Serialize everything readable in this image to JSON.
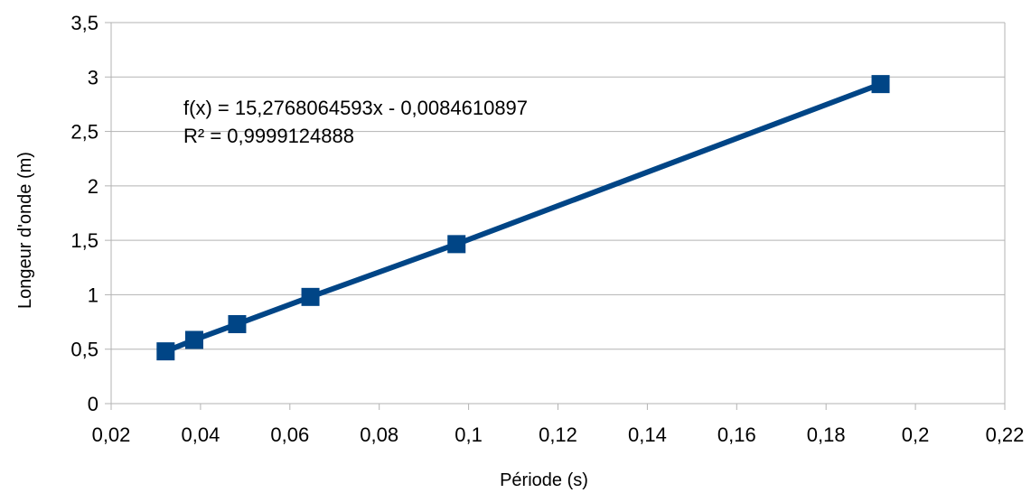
{
  "chart_data": {
    "type": "line",
    "xlabel": "Période (s)",
    "ylabel": "Longeur d'onde (m)",
    "xlim": [
      0.02,
      0.22
    ],
    "ylim": [
      0,
      3.5
    ],
    "x_ticks": [
      "0,02",
      "0,04",
      "0,06",
      "0,08",
      "0,1",
      "0,12",
      "0,14",
      "0,16",
      "0,18",
      "0,2",
      "0,22"
    ],
    "y_ticks": [
      "0",
      "0,5",
      "1",
      "1,5",
      "2",
      "2,5",
      "3",
      "3,5"
    ],
    "grid": "horizontal",
    "legend": "none",
    "series": [
      {
        "color": "#004586",
        "marker": "square",
        "points": [
          {
            "x": 0.0322,
            "y": 0.48
          },
          {
            "x": 0.0386,
            "y": 0.585
          },
          {
            "x": 0.0482,
            "y": 0.73
          },
          {
            "x": 0.0646,
            "y": 0.98
          },
          {
            "x": 0.0973,
            "y": 1.465
          },
          {
            "x": 0.1922,
            "y": 2.935
          }
        ]
      }
    ],
    "annotations": [
      "f(x) = 15,2768064593x - 0,0084610897",
      "R² = 0,9999124888"
    ]
  }
}
